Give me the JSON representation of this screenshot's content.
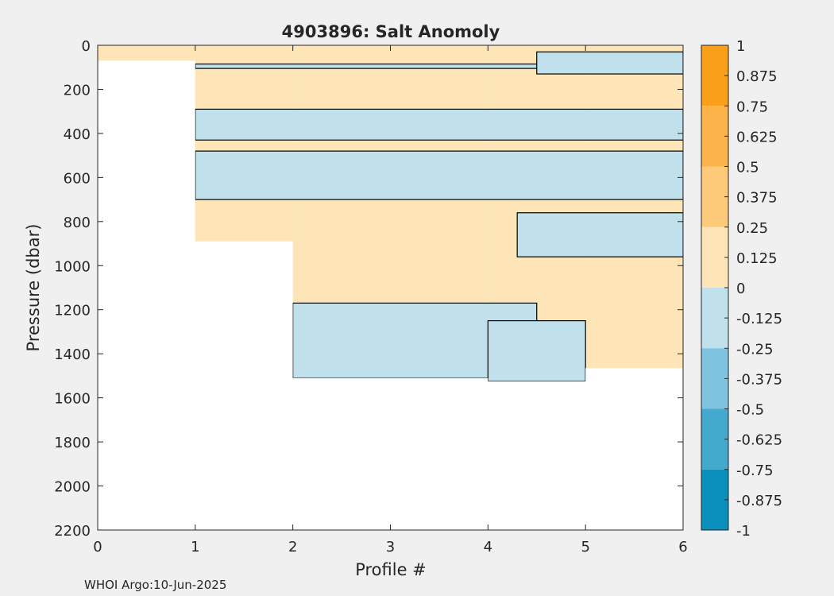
{
  "chart_data": {
    "type": "heatmap",
    "title": "4903896: Salt Anomoly",
    "xlabel": "Profile #",
    "ylabel": "Pressure (dbar)",
    "xlim": [
      0,
      6
    ],
    "ylim": [
      0,
      2200
    ],
    "y_reversed": true,
    "x_ticks": [
      "0",
      "1",
      "2",
      "3",
      "4",
      "5",
      "6"
    ],
    "y_ticks": [
      "0",
      "200",
      "400",
      "600",
      "800",
      "1000",
      "1200",
      "1400",
      "1600",
      "1800",
      "2000",
      "2200"
    ],
    "grid": false,
    "colorbar": {
      "range": [
        -1,
        1
      ],
      "ticks": [
        "1",
        "0.875",
        "0.75",
        "0.625",
        "0.5",
        "0.375",
        "0.25",
        "0.125",
        "0",
        "-0.125",
        "-0.25",
        "-0.375",
        "-0.5",
        "-0.625",
        "-0.75",
        "-0.875",
        "-1"
      ],
      "bins": [
        {
          "from": 0.75,
          "to": 1.0,
          "color": "#fa9f1a"
        },
        {
          "from": 0.5,
          "to": 0.75,
          "color": "#fbb34a"
        },
        {
          "from": 0.25,
          "to": 0.5,
          "color": "#fdca79"
        },
        {
          "from": 0.0,
          "to": 0.25,
          "color": "#fde5b7"
        },
        {
          "from": -0.25,
          "to": 0.0,
          "color": "#c0e1ec"
        },
        {
          "from": -0.5,
          "to": -0.25,
          "color": "#7fc4df"
        },
        {
          "from": -0.75,
          "to": -0.5,
          "color": "#44aacd"
        },
        {
          "from": -1.0,
          "to": -0.75,
          "color": "#0b8fbd"
        }
      ]
    },
    "profile_depth_ranges": [
      {
        "x_from": 0,
        "x_to": 1,
        "p_top": 0,
        "p_bottom": 70
      },
      {
        "x_from": 1,
        "x_to": 2,
        "p_top": 0,
        "p_bottom": 890
      },
      {
        "x_from": 2,
        "x_to": 4,
        "p_top": 0,
        "p_bottom": 1510
      },
      {
        "x_from": 4,
        "x_to": 5,
        "p_top": 0,
        "p_bottom": 1525
      },
      {
        "x_from": 5,
        "x_to": 6,
        "p_top": 0,
        "p_bottom": 1465
      }
    ],
    "negative_bands": [
      {
        "x_from": 1,
        "x_to": 6,
        "p_from": 85,
        "p_to": 105
      },
      {
        "x_from": 4.5,
        "x_to": 6,
        "p_from": 30,
        "p_to": 130
      },
      {
        "x_from": 1,
        "x_to": 6,
        "p_from": 290,
        "p_to": 430
      },
      {
        "x_from": 1,
        "x_to": 6,
        "p_from": 480,
        "p_to": 700
      },
      {
        "x_from": 4.3,
        "x_to": 6,
        "p_from": 760,
        "p_to": 960
      },
      {
        "x_from": 2,
        "x_to": 4.5,
        "p_from": 1170,
        "p_to": 1510
      },
      {
        "x_from": 4,
        "x_to": 5,
        "p_from": 1250,
        "p_to": 1525
      }
    ]
  },
  "footer": "WHOI Argo:10-Jun-2025"
}
